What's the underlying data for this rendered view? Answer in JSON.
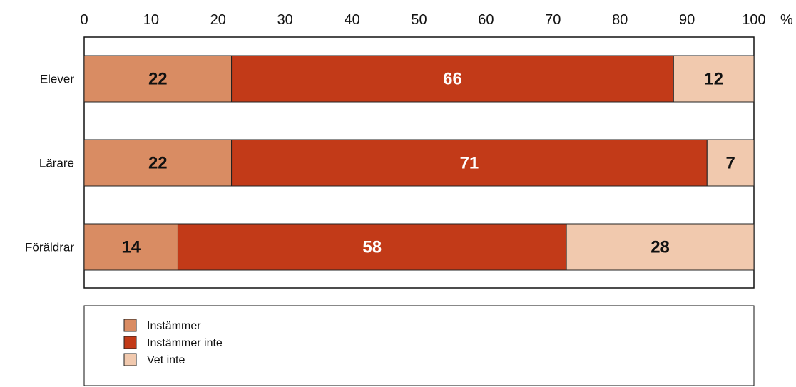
{
  "chart_data": {
    "type": "bar",
    "orientation": "horizontal",
    "stacked": true,
    "categories": [
      "Elever",
      "Lärare",
      "Föräldrar"
    ],
    "series": [
      {
        "name": "Instämmer",
        "values": [
          22,
          22,
          14
        ],
        "color": "#d98c63"
      },
      {
        "name": "Instämmer inte",
        "values": [
          66,
          71,
          58
        ],
        "color": "#c23a18"
      },
      {
        "name": "Vet inte",
        "values": [
          12,
          7,
          28
        ],
        "color": "#f1c9ae"
      }
    ],
    "xlim": [
      0,
      100
    ],
    "xticks": [
      "0",
      "10",
      "20",
      "30",
      "40",
      "50",
      "60",
      "70",
      "80",
      "90",
      "100"
    ],
    "xunit": "%",
    "label_colors": [
      "#111111",
      "#ffffff",
      "#111111"
    ],
    "legend_position": "bottom",
    "grid": false
  }
}
